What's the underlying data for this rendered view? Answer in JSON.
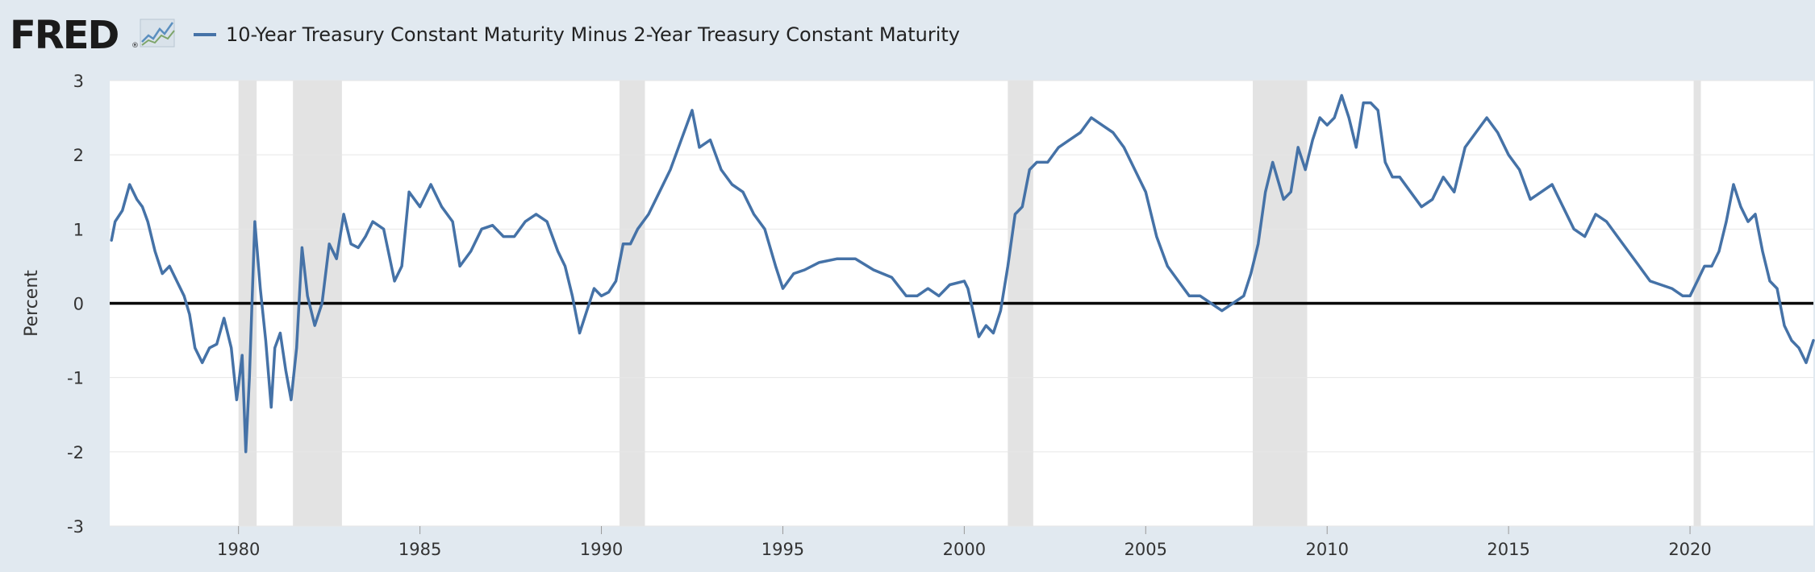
{
  "header": {
    "logo_text": "FRED",
    "logo_reg": "®"
  },
  "icons": {
    "logo_graph": "line-graph-icon"
  },
  "colors": {
    "series": "#4572a7",
    "recession": "#e3e3e3",
    "zero_line": "#000000",
    "plot_bg": "#ffffff",
    "page_bg": "#e1e9f0",
    "grid": "#e6e6e6"
  },
  "chart_data": {
    "type": "line",
    "title": "",
    "xlabel": "",
    "ylabel": "Percent",
    "ylim": [
      -3,
      3
    ],
    "xlim": [
      1976.45,
      2023.4
    ],
    "y_ticks": [
      3,
      2,
      1,
      0,
      -1,
      -2,
      -3
    ],
    "x_ticks": [
      1980,
      1985,
      1990,
      1995,
      2000,
      2005,
      2010,
      2015,
      2020
    ],
    "grid": true,
    "legend": "top-left",
    "reference_line": 0,
    "recessions": [
      [
        1980.0,
        1980.5
      ],
      [
        1981.5,
        1982.85
      ],
      [
        1990.5,
        1991.2
      ],
      [
        2001.2,
        2001.9
      ],
      [
        2007.95,
        2009.45
      ],
      [
        2020.1,
        2020.3
      ]
    ],
    "series": [
      {
        "name": "10-Year Treasury Constant Maturity Minus 2-Year Treasury Constant Maturity",
        "x": [
          1976.5,
          1976.6,
          1976.8,
          1977.0,
          1977.2,
          1977.35,
          1977.5,
          1977.7,
          1977.9,
          1978.1,
          1978.3,
          1978.5,
          1978.65,
          1978.8,
          1979.0,
          1979.2,
          1979.4,
          1979.6,
          1979.8,
          1979.95,
          1980.1,
          1980.2,
          1980.3,
          1980.45,
          1980.6,
          1980.75,
          1980.9,
          1981.0,
          1981.15,
          1981.3,
          1981.45,
          1981.6,
          1981.75,
          1981.9,
          1982.1,
          1982.3,
          1982.5,
          1982.7,
          1982.9,
          1983.1,
          1983.3,
          1983.5,
          1983.7,
          1984.0,
          1984.3,
          1984.5,
          1984.7,
          1985.0,
          1985.3,
          1985.6,
          1985.9,
          1986.1,
          1986.4,
          1986.7,
          1987.0,
          1987.3,
          1987.6,
          1987.9,
          1988.2,
          1988.5,
          1988.8,
          1989.0,
          1989.2,
          1989.4,
          1989.6,
          1989.8,
          1990.0,
          1990.2,
          1990.4,
          1990.6,
          1990.8,
          1991.0,
          1991.3,
          1991.6,
          1991.9,
          1992.2,
          1992.5,
          1992.7,
          1993.0,
          1993.3,
          1993.6,
          1993.9,
          1994.2,
          1994.5,
          1994.8,
          1995.0,
          1995.3,
          1995.6,
          1996.0,
          1996.5,
          1997.0,
          1997.5,
          1998.0,
          1998.4,
          1998.7,
          1999.0,
          1999.3,
          1999.6,
          2000.0,
          2000.1,
          2000.4,
          2000.6,
          2000.8,
          2001.0,
          2001.2,
          2001.4,
          2001.6,
          2001.8,
          2002.0,
          2002.3,
          2002.6,
          2002.9,
          2003.2,
          2003.5,
          2003.8,
          2004.1,
          2004.4,
          2004.7,
          2005.0,
          2005.3,
          2005.6,
          2005.9,
          2006.2,
          2006.5,
          2006.8,
          2007.1,
          2007.4,
          2007.7,
          2007.9,
          2008.1,
          2008.3,
          2008.5,
          2008.8,
          2009.0,
          2009.2,
          2009.4,
          2009.6,
          2009.8,
          2010.0,
          2010.2,
          2010.4,
          2010.6,
          2010.8,
          2011.0,
          2011.2,
          2011.4,
          2011.6,
          2011.8,
          2012.0,
          2012.3,
          2012.6,
          2012.9,
          2013.2,
          2013.5,
          2013.8,
          2014.1,
          2014.4,
          2014.7,
          2015.0,
          2015.3,
          2015.6,
          2015.9,
          2016.2,
          2016.5,
          2016.8,
          2017.1,
          2017.4,
          2017.7,
          2018.0,
          2018.3,
          2018.6,
          2018.9,
          2019.2,
          2019.5,
          2019.8,
          2020.0,
          2020.2,
          2020.4,
          2020.6,
          2020.8,
          2021.0,
          2021.2,
          2021.4,
          2021.6,
          2021.8,
          2022.0,
          2022.2,
          2022.4,
          2022.6,
          2022.8,
          2023.0,
          2023.2,
          2023.4
        ],
        "y": [
          0.85,
          1.1,
          1.25,
          1.6,
          1.4,
          1.3,
          1.1,
          0.7,
          0.4,
          0.5,
          0.3,
          0.1,
          -0.15,
          -0.6,
          -0.8,
          -0.6,
          -0.55,
          -0.2,
          -0.6,
          -1.3,
          -0.7,
          -2.0,
          -1.0,
          1.1,
          0.2,
          -0.5,
          -1.4,
          -0.6,
          -0.4,
          -0.9,
          -1.3,
          -0.6,
          0.75,
          0.1,
          -0.3,
          0.0,
          0.8,
          0.6,
          1.2,
          0.8,
          0.75,
          0.9,
          1.1,
          1.0,
          0.3,
          0.5,
          1.5,
          1.3,
          1.6,
          1.3,
          1.1,
          0.5,
          0.7,
          1.0,
          1.05,
          0.9,
          0.9,
          1.1,
          1.2,
          1.1,
          0.7,
          0.5,
          0.1,
          -0.4,
          -0.1,
          0.2,
          0.1,
          0.15,
          0.3,
          0.8,
          0.8,
          1.0,
          1.2,
          1.5,
          1.8,
          2.2,
          2.6,
          2.1,
          2.2,
          1.8,
          1.6,
          1.5,
          1.2,
          1.0,
          0.5,
          0.2,
          0.4,
          0.45,
          0.55,
          0.6,
          0.6,
          0.45,
          0.35,
          0.1,
          0.1,
          0.2,
          0.1,
          0.25,
          0.3,
          0.2,
          -0.45,
          -0.3,
          -0.4,
          -0.1,
          0.5,
          1.2,
          1.3,
          1.8,
          1.9,
          1.9,
          2.1,
          2.2,
          2.3,
          2.5,
          2.4,
          2.3,
          2.1,
          1.8,
          1.5,
          0.9,
          0.5,
          0.3,
          0.1,
          0.1,
          0.0,
          -0.1,
          0.0,
          0.1,
          0.4,
          0.8,
          1.5,
          1.9,
          1.4,
          1.5,
          2.1,
          1.8,
          2.2,
          2.5,
          2.4,
          2.5,
          2.8,
          2.5,
          2.1,
          2.7,
          2.7,
          2.6,
          1.9,
          1.7,
          1.7,
          1.5,
          1.3,
          1.4,
          1.7,
          1.5,
          2.1,
          2.3,
          2.5,
          2.3,
          2.0,
          1.8,
          1.4,
          1.5,
          1.6,
          1.3,
          1.0,
          0.9,
          1.2,
          1.1,
          0.9,
          0.7,
          0.5,
          0.3,
          0.25,
          0.2,
          0.1,
          0.1,
          0.3,
          0.5,
          0.5,
          0.7,
          1.1,
          1.6,
          1.3,
          1.1,
          1.2,
          0.7,
          0.3,
          0.2,
          -0.3,
          -0.5,
          -0.6,
          -0.8,
          -0.5
        ]
      }
    ]
  }
}
